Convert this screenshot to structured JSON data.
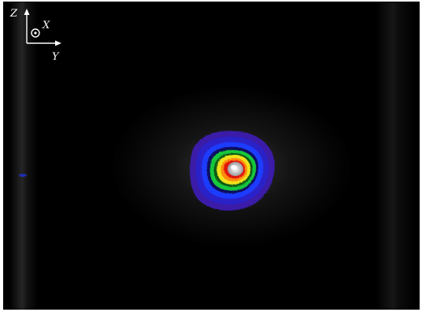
{
  "image": {
    "description_free": true,
    "axes": {
      "z_label": "Z",
      "x_label": "X",
      "y_label": "Y"
    },
    "colors": {
      "background": "#000000",
      "ring_outer": "#3a1aa8",
      "ring_blue": "#1f3cff",
      "ring_green": "#19c83a",
      "ring_yellow": "#f0e21a",
      "ring_orange": "#ff8a10",
      "ring_red": "#e0140e",
      "core": "#e8e8e8",
      "axis": "#ffffff"
    },
    "icons": {
      "out_of_plane": "circle-dot-icon",
      "z_arrow": "arrow-up-icon",
      "y_arrow": "arrow-right-icon"
    }
  }
}
